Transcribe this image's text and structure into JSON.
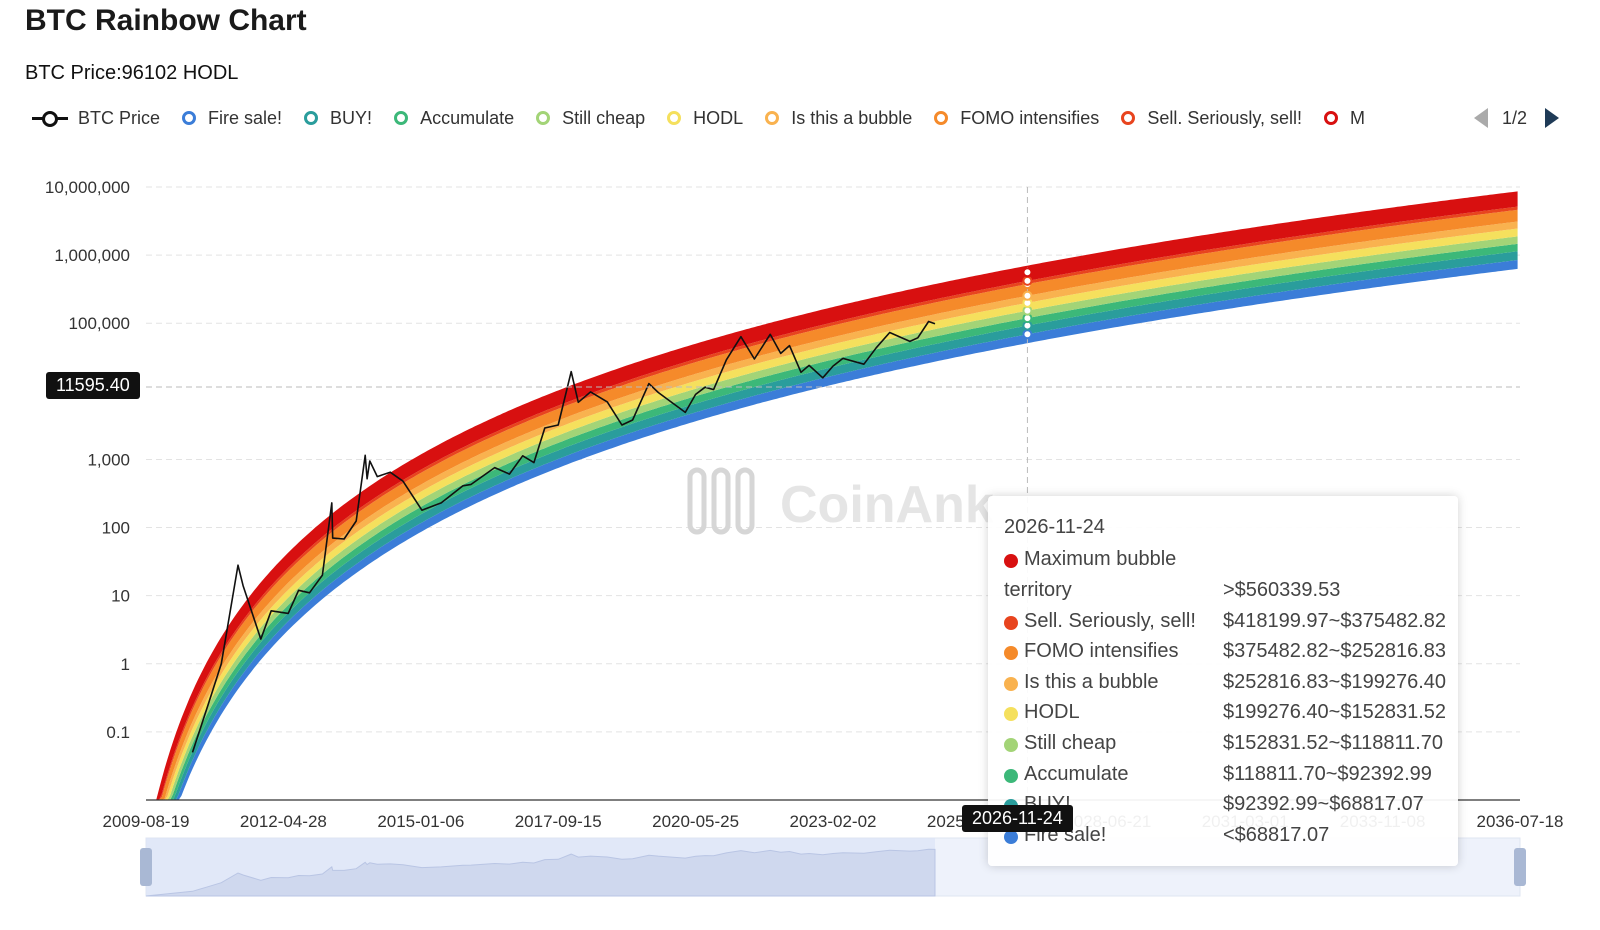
{
  "title": "BTC Rainbow Chart",
  "price_text": "BTC Price:96102 HODL",
  "watermark": "CoinAnk",
  "legend": {
    "items": [
      {
        "label": "BTC Price",
        "color": "#111111",
        "icon": "line-with-circle"
      },
      {
        "label": "Fire sale!",
        "color": "#3b7dd8"
      },
      {
        "label": "BUY!",
        "color": "#2a9d9c"
      },
      {
        "label": "Accumulate",
        "color": "#3cb879"
      },
      {
        "label": "Still cheap",
        "color": "#a3d477"
      },
      {
        "label": "HODL",
        "color": "#f5e05d"
      },
      {
        "label": "Is this a bubble",
        "color": "#f9b24f"
      },
      {
        "label": "FOMO intensifies",
        "color": "#f58a2a"
      },
      {
        "label": "Sell. Seriously, sell!",
        "color": "#e8441e"
      },
      {
        "label": "M",
        "color": "#d81010"
      }
    ],
    "page": "1/2"
  },
  "crosshair": {
    "y_label": "11595.40",
    "x_label": "2026-11-24"
  },
  "tooltip": {
    "date": "2026-11-24",
    "rows": [
      {
        "name": "Maximum bubble",
        "name2": "territory",
        "value": ">$560339.53",
        "color": "#d81010"
      },
      {
        "name": "Sell. Seriously, sell!",
        "value": "$418199.97~$375482.82",
        "color": "#e8441e"
      },
      {
        "name": "FOMO intensifies",
        "value": "$375482.82~$252816.83",
        "color": "#f58a2a"
      },
      {
        "name": "Is this a bubble",
        "value": "$252816.83~$199276.40",
        "color": "#f9b24f"
      },
      {
        "name": "HODL",
        "value": "$199276.40~$152831.52",
        "color": "#f5e05d"
      },
      {
        "name": "Still cheap",
        "value": "$152831.52~$118811.70",
        "color": "#a3d477"
      },
      {
        "name": "Accumulate",
        "value": "$118811.70~$92392.99",
        "color": "#3cb879"
      },
      {
        "name": "BUY!",
        "value": "$92392.99~$68817.07",
        "color": "#2a9d9c"
      },
      {
        "name": "Fire sale!",
        "value": "<$68817.07",
        "color": "#3b7dd8"
      }
    ]
  },
  "chart_data": {
    "type": "line",
    "title": "BTC Rainbow Chart",
    "y_scale": "log",
    "ylim": [
      0.01,
      10000000
    ],
    "y_ticks": [
      {
        "value": 10000000,
        "label": "10,000,000"
      },
      {
        "value": 1000000,
        "label": "1,000,000"
      },
      {
        "value": 100000,
        "label": "100,000"
      },
      {
        "value": 1000,
        "label": "1,000"
      },
      {
        "value": 100,
        "label": "100"
      },
      {
        "value": 10,
        "label": "10"
      },
      {
        "value": 1,
        "label": "1"
      },
      {
        "value": 0.1,
        "label": "0.1"
      }
    ],
    "xlim": [
      "2009-08-19",
      "2036-07-18"
    ],
    "x_ticks": [
      "2009-08-19",
      "2012-04-28",
      "2015-01-06",
      "2017-09-15",
      "2020-05-25",
      "2023-02-02",
      "2025-10-12",
      "2028-06-21",
      "2031-03-01",
      "2033-11-08",
      "2036-07-18"
    ],
    "grid": true,
    "legend_position": "top",
    "bands": [
      {
        "name": "Fire sale!",
        "color": "#3b7dd8"
      },
      {
        "name": "BUY!",
        "color": "#2a9d9c"
      },
      {
        "name": "Accumulate",
        "color": "#3cb879"
      },
      {
        "name": "Still cheap",
        "color": "#a3d477"
      },
      {
        "name": "HODL",
        "color": "#f5e05d"
      },
      {
        "name": "Is this a bubble",
        "color": "#f9b24f"
      },
      {
        "name": "FOMO intensifies",
        "color": "#f58a2a"
      },
      {
        "name": "Sell. Seriously, sell!",
        "color": "#e8441e"
      },
      {
        "name": "Maximum bubble territory",
        "color": "#d81010"
      }
    ],
    "band_edges_at_2026_11_24": [
      68817.07,
      92392.99,
      118811.7,
      152831.52,
      199276.4,
      252816.83,
      375482.82,
      418199.97,
      560339.53
    ],
    "series": [
      {
        "name": "BTC Price",
        "points": [
          [
            "2010-07-18",
            0.05
          ],
          [
            "2010-11-06",
            0.25
          ],
          [
            "2011-02-09",
            1.0
          ],
          [
            "2011-06-08",
            28
          ],
          [
            "2011-07-15",
            14
          ],
          [
            "2011-11-18",
            2.3
          ],
          [
            "2012-02-01",
            6
          ],
          [
            "2012-06-01",
            5.5
          ],
          [
            "2012-08-15",
            12
          ],
          [
            "2012-11-01",
            11
          ],
          [
            "2013-02-01",
            20
          ],
          [
            "2013-04-09",
            230
          ],
          [
            "2013-04-16",
            70
          ],
          [
            "2013-07-06",
            68
          ],
          [
            "2013-10-01",
            125
          ],
          [
            "2013-12-04",
            1150
          ],
          [
            "2013-12-18",
            520
          ],
          [
            "2014-01-06",
            950
          ],
          [
            "2014-03-01",
            560
          ],
          [
            "2014-06-01",
            650
          ],
          [
            "2014-09-01",
            480
          ],
          [
            "2015-01-14",
            180
          ],
          [
            "2015-06-01",
            230
          ],
          [
            "2015-11-04",
            410
          ],
          [
            "2016-01-01",
            430
          ],
          [
            "2016-06-18",
            760
          ],
          [
            "2016-10-01",
            610
          ],
          [
            "2017-01-04",
            1130
          ],
          [
            "2017-03-25",
            900
          ],
          [
            "2017-06-11",
            2900
          ],
          [
            "2017-09-15",
            3200
          ],
          [
            "2017-12-17",
            19500
          ],
          [
            "2018-02-06",
            6900
          ],
          [
            "2018-05-05",
            9800
          ],
          [
            "2018-09-01",
            7000
          ],
          [
            "2018-12-15",
            3200
          ],
          [
            "2019-03-01",
            3800
          ],
          [
            "2019-06-26",
            13000
          ],
          [
            "2019-09-01",
            9600
          ],
          [
            "2019-12-18",
            6600
          ],
          [
            "2020-03-12",
            4900
          ],
          [
            "2020-05-25",
            9000
          ],
          [
            "2020-08-01",
            11500
          ],
          [
            "2020-10-01",
            10600
          ],
          [
            "2020-12-31",
            29000
          ],
          [
            "2021-04-14",
            63500
          ],
          [
            "2021-07-20",
            29800
          ],
          [
            "2021-11-10",
            68700
          ],
          [
            "2022-01-24",
            36000
          ],
          [
            "2022-03-28",
            47000
          ],
          [
            "2022-06-18",
            19000
          ],
          [
            "2022-08-15",
            24000
          ],
          [
            "2022-11-21",
            15800
          ],
          [
            "2023-02-02",
            23500
          ],
          [
            "2023-04-14",
            30400
          ],
          [
            "2023-09-11",
            25000
          ],
          [
            "2023-12-08",
            43500
          ],
          [
            "2024-03-14",
            73000
          ],
          [
            "2024-08-05",
            54000
          ],
          [
            "2024-10-01",
            61000
          ],
          [
            "2024-12-17",
            106000
          ],
          [
            "2025-02-01",
            98000
          ]
        ]
      }
    ]
  }
}
